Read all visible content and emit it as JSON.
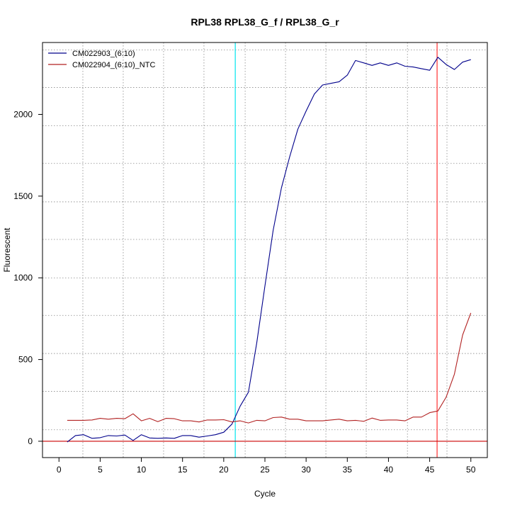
{
  "chart_data": {
    "type": "line",
    "title": "RPL38  RPL38_G_f / RPL38_G_r",
    "xlabel": "Cycle",
    "ylabel": "Fluorescent",
    "xlim": [
      -2,
      52
    ],
    "ylim": [
      -100,
      2440
    ],
    "xticks": [
      0,
      5,
      10,
      15,
      20,
      25,
      30,
      35,
      40,
      45,
      50
    ],
    "xtick_labels": [
      "0",
      "5",
      "10",
      "15",
      "20",
      "25",
      "30",
      "35",
      "40",
      "45",
      "50"
    ],
    "yticks": [
      0,
      500,
      1000,
      1500,
      2000
    ],
    "ytick_labels": [
      "0",
      "500",
      "1000",
      "1500",
      "2000"
    ],
    "grid": true,
    "x_grid_lines": [
      2.9,
      7.8,
      12.7,
      17.6,
      22.6,
      27.5,
      32.4,
      37.3,
      42.3,
      47.1
    ],
    "y_grid_lines": [
      70,
      305,
      537,
      770,
      1000,
      1235,
      1465,
      1700,
      1930,
      2165,
      2395
    ],
    "reference_lines": {
      "vertical": [
        {
          "x": 21.4,
          "color": "#00e5ee"
        },
        {
          "x": 45.9,
          "color": "#ff3030"
        }
      ],
      "horizontal": [
        {
          "y": 0,
          "color": "#cc0000"
        }
      ]
    },
    "legend_position": "top-left",
    "series": [
      {
        "name": "CM022903_(6:10)",
        "color": "#00008b",
        "x": [
          1,
          2,
          3,
          4,
          5,
          6,
          7,
          8,
          9,
          10,
          11,
          12,
          13,
          14,
          15,
          16,
          17,
          18,
          19,
          20,
          21,
          22,
          23,
          24,
          25,
          26,
          27,
          28,
          29,
          30,
          31,
          32,
          33,
          34,
          35,
          36,
          37,
          38,
          39,
          40,
          41,
          42,
          43,
          44,
          45,
          46,
          47,
          48,
          49,
          50
        ],
        "values": [
          -5,
          35,
          40,
          18,
          22,
          35,
          32,
          38,
          5,
          40,
          20,
          18,
          20,
          18,
          35,
          35,
          25,
          32,
          40,
          55,
          105,
          215,
          300,
          600,
          950,
          1290,
          1550,
          1740,
          1910,
          2020,
          2125,
          2180,
          2190,
          2200,
          2240,
          2330,
          2315,
          2300,
          2315,
          2300,
          2315,
          2295,
          2290,
          2280,
          2270,
          2350,
          2305,
          2275,
          2320,
          2335
        ]
      },
      {
        "name": "CM022904_(6:10)_NTC",
        "color": "#b22222",
        "x": [
          1,
          2,
          3,
          4,
          5,
          6,
          7,
          8,
          9,
          10,
          11,
          12,
          13,
          14,
          15,
          16,
          17,
          18,
          19,
          20,
          21,
          22,
          23,
          24,
          25,
          26,
          27,
          28,
          29,
          30,
          31,
          32,
          33,
          34,
          35,
          36,
          37,
          38,
          39,
          40,
          41,
          42,
          43,
          44,
          45,
          46,
          47,
          48,
          49,
          50
        ],
        "values": [
          128,
          128,
          128,
          130,
          140,
          135,
          140,
          138,
          168,
          125,
          140,
          120,
          140,
          138,
          125,
          125,
          118,
          130,
          130,
          132,
          118,
          125,
          112,
          128,
          125,
          145,
          148,
          135,
          135,
          125,
          125,
          125,
          130,
          135,
          125,
          128,
          122,
          142,
          128,
          130,
          130,
          125,
          148,
          148,
          175,
          185,
          270,
          410,
          650,
          785
        ]
      }
    ]
  }
}
